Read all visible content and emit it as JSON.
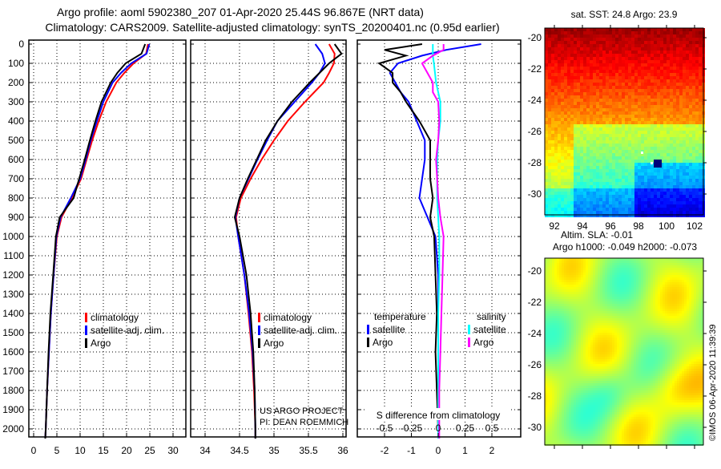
{
  "title_line1": "Argo profile: aoml 5902380_207 01-Apr-2020 25.44S 96.867E (NRT data)",
  "title_line2": "Climatology: CARS2009. Satellite-adjusted climatology: synTS_20200401.nc (0.95d earlier)",
  "colors": {
    "climatology": "#ff0000",
    "satellite": "#0000ff",
    "argo": "#000000",
    "sal_satellite": "#00ffff",
    "sal_argo": "#ff00ff"
  },
  "chart_data": [
    {
      "type": "line",
      "name": "temperature",
      "xlim": [
        0,
        30
      ],
      "ylim": [
        2050,
        0
      ],
      "grid": true,
      "xticks": [
        "0",
        "5",
        "10",
        "15",
        "20",
        "25",
        "30"
      ],
      "xtick_values": [
        0,
        5,
        10,
        15,
        20,
        25,
        30
      ],
      "yticks": [
        "0",
        "100",
        "200",
        "300",
        "400",
        "500",
        "600",
        "700",
        "800",
        "900",
        "1000",
        "1100",
        "1200",
        "1300",
        "1400",
        "1500",
        "1600",
        "1700",
        "1800",
        "1900",
        "2000"
      ],
      "depth": [
        0,
        50,
        100,
        150,
        200,
        300,
        400,
        500,
        600,
        700,
        800,
        900,
        1000,
        1200,
        1400,
        1600,
        1800,
        2000,
        2050
      ],
      "series": [
        {
          "name": "climatology",
          "values": [
            24.6,
            24.2,
            21.5,
            19.5,
            17.8,
            15.6,
            14.0,
            12.6,
            11.4,
            10.2,
            8.2,
            6.0,
            5.0,
            4.3,
            3.7,
            3.3,
            2.9,
            2.6,
            2.5
          ]
        },
        {
          "name": "satellite-adj. clim.",
          "values": [
            24.9,
            24.3,
            21,
            18.8,
            17.0,
            15.0,
            13.6,
            12.3,
            11.2,
            10.0,
            8.0,
            5.8,
            4.9,
            4.3,
            3.7,
            3.3,
            2.9,
            2.6,
            2.5
          ]
        },
        {
          "name": "Argo",
          "values": [
            24.0,
            23.2,
            19.8,
            18.0,
            16.6,
            14.6,
            13.3,
            12.1,
            11.0,
            9.8,
            8.6,
            5.6,
            4.8,
            4.2,
            3.6,
            3.2,
            2.9,
            2.6,
            2.5
          ]
        }
      ],
      "legend": [
        "climatology",
        "satellite-adj. clim.",
        "Argo"
      ],
      "legend_placement": "bottom-right"
    },
    {
      "type": "line",
      "name": "salinity",
      "xlim": [
        33.75,
        36.05
      ],
      "ylim": [
        2050,
        0
      ],
      "grid": true,
      "xticks": [
        "34",
        "34.5",
        "35",
        "35.5",
        "36"
      ],
      "xtick_values": [
        34,
        34.5,
        35,
        35.5,
        36
      ],
      "depth": [
        0,
        50,
        100,
        150,
        200,
        300,
        400,
        500,
        600,
        700,
        800,
        900,
        1000,
        1200,
        1400,
        1600,
        1800,
        2000,
        2050
      ],
      "series": [
        {
          "name": "climatology",
          "values": [
            35.8,
            35.88,
            35.87,
            35.8,
            35.72,
            35.45,
            35.2,
            35.0,
            34.82,
            34.66,
            34.52,
            34.45,
            34.48,
            34.57,
            34.63,
            34.68,
            34.71,
            34.73,
            34.73
          ]
        },
        {
          "name": "satellite-adj. clim.",
          "values": [
            35.6,
            35.7,
            35.74,
            35.66,
            35.55,
            35.3,
            35.05,
            34.9,
            34.76,
            34.63,
            34.5,
            34.44,
            34.48,
            34.57,
            34.64,
            34.69,
            34.72,
            34.73,
            34.73
          ]
        },
        {
          "name": "Argo",
          "values": [
            35.88,
            35.98,
            35.8,
            35.66,
            35.52,
            35.26,
            35.05,
            34.88,
            34.75,
            34.62,
            34.5,
            34.43,
            34.5,
            34.6,
            34.66,
            34.7,
            34.72,
            34.73,
            34.73
          ]
        }
      ],
      "legend": [
        "climatology",
        "satellite-adj. clim.",
        "Argo"
      ],
      "legend_placement": "bottom-right",
      "credits": [
        "US ARGO PROJECT",
        "PI: DEAN ROEMMICH"
      ]
    },
    {
      "type": "line",
      "name": "difference from climatology",
      "xlim": [
        -3,
        3.05
      ],
      "ylim": [
        2050,
        0
      ],
      "grid": true,
      "xticks": [
        "-2",
        "-1",
        "0",
        "1",
        "2"
      ],
      "xtick_values": [
        -2,
        -1,
        0,
        1,
        2
      ],
      "s_xticks": [
        "-0.5",
        "-0.25",
        "0",
        "0.25",
        "0.5"
      ],
      "s_xtick_values": [
        -0.5,
        -0.25,
        0,
        0.25,
        0.5
      ],
      "s_axis_label": "S difference from climatology",
      "depth": [
        0,
        30,
        60,
        100,
        150,
        200,
        250,
        300,
        400,
        500,
        600,
        700,
        800,
        900,
        1000,
        1200,
        1400,
        1600,
        1800,
        2000,
        2050
      ],
      "series": [
        {
          "name": "temperature satellite",
          "group": "temperature",
          "values": [
            1.6,
            0.3,
            -0.6,
            -1.5,
            -1.8,
            -1.6,
            -1.4,
            -1.1,
            -0.8,
            -0.5,
            -0.5,
            -0.6,
            -0.7,
            -0.4,
            -0.1,
            0,
            0,
            0,
            0,
            0,
            0
          ]
        },
        {
          "name": "temperature Argo",
          "group": "temperature",
          "values": [
            -0.6,
            -2.0,
            -1.2,
            -2.2,
            -1.7,
            -1.7,
            -1.4,
            -1.2,
            -0.7,
            -0.3,
            -0.3,
            -0.3,
            -0.2,
            -0.3,
            -0.15,
            -0.1,
            -0.05,
            -0.1,
            -0.05,
            0,
            0
          ]
        },
        {
          "name": "salinity satellite",
          "group": "salinity",
          "values": [
            -0.05,
            -0.05,
            -0.05,
            -0.04,
            -0.03,
            -0.02,
            0,
            0.02,
            0.02,
            0.0,
            -0.01,
            -0.01,
            -0.01,
            0,
            0.01,
            0.01,
            0.0,
            0.0,
            0.0,
            0.0,
            0.0
          ]
        },
        {
          "name": "salinity Argo",
          "group": "salinity",
          "values": [
            0.05,
            0.05,
            -0.05,
            -0.15,
            -0.1,
            -0.05,
            -0.05,
            0,
            0.01,
            0.0,
            -0.02,
            -0.01,
            0.0,
            0.02,
            0.05,
            0.04,
            0.03,
            0.02,
            0.01,
            0.01,
            0.01
          ]
        }
      ],
      "legend_groups": [
        {
          "title": "temperature",
          "items": [
            "satellite",
            "Argo"
          ]
        },
        {
          "title": "salinity",
          "items": [
            "satellite",
            "Argo"
          ]
        }
      ]
    }
  ],
  "maps": {
    "sst": {
      "title": "sat. SST: 24.8 Argo: 23.9",
      "yticks": [
        "-20",
        "-22",
        "-24",
        "-26",
        "-28",
        "-30"
      ],
      "xticks": [
        "92",
        "94",
        "96",
        "98",
        "100",
        "102"
      ]
    },
    "sla": {
      "title1": "Altim. SLA: -0.01",
      "title2": "Argo h1000: -0.049 h2000: -0.073",
      "yticks": [
        "-20",
        "-22",
        "-24",
        "-26",
        "-28",
        "-30"
      ]
    }
  },
  "copyright": "©IMOS 06-Apr-2020 11:39:39"
}
